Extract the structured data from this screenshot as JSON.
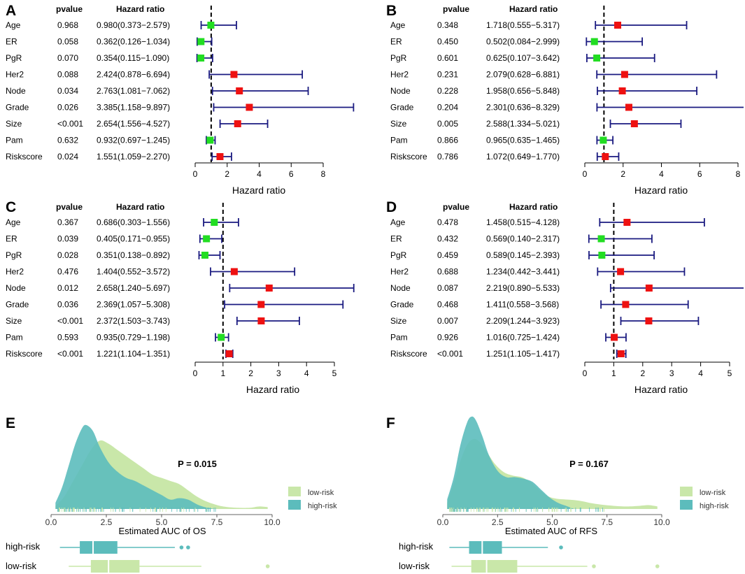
{
  "chart_data": [
    {
      "panel": "A",
      "type": "forest",
      "headers": {
        "pvalue": "pvalue",
        "hr": "Hazard ratio"
      },
      "xlabel": "Hazard ratio",
      "xlim": [
        0,
        8
      ],
      "xticks": [
        "0",
        "2",
        "4",
        "6",
        "8"
      ],
      "ref": 1,
      "rows": [
        {
          "name": "Age",
          "p": "0.968",
          "text": "0.980(0.373−2.579)",
          "hr": 0.98,
          "lo": 0.373,
          "hi": 2.579,
          "color": "#22dd22"
        },
        {
          "name": "ER",
          "p": "0.058",
          "text": "0.362(0.126−1.034)",
          "hr": 0.362,
          "lo": 0.126,
          "hi": 1.034,
          "color": "#22dd22"
        },
        {
          "name": "PgR",
          "p": "0.070",
          "text": "0.354(0.115−1.090)",
          "hr": 0.354,
          "lo": 0.115,
          "hi": 1.09,
          "color": "#22dd22"
        },
        {
          "name": "Her2",
          "p": "0.088",
          "text": "2.424(0.878−6.694)",
          "hr": 2.424,
          "lo": 0.878,
          "hi": 6.694,
          "color": "#ee1111"
        },
        {
          "name": "Node",
          "p": "0.034",
          "text": "2.763(1.081−7.062)",
          "hr": 2.763,
          "lo": 1.081,
          "hi": 7.062,
          "color": "#ee1111"
        },
        {
          "name": "Grade",
          "p": "0.026",
          "text": "3.385(1.158−9.897)",
          "hr": 3.385,
          "lo": 1.158,
          "hi": 9.897,
          "color": "#ee1111"
        },
        {
          "name": "Size",
          "p": "<0.001",
          "text": "2.654(1.556−4.527)",
          "hr": 2.654,
          "lo": 1.556,
          "hi": 4.527,
          "color": "#ee1111"
        },
        {
          "name": "Pam",
          "p": "0.632",
          "text": "0.932(0.697−1.245)",
          "hr": 0.932,
          "lo": 0.697,
          "hi": 1.245,
          "color": "#22dd22"
        },
        {
          "name": "Riskscore",
          "p": "0.024",
          "text": "1.551(1.059−2.270)",
          "hr": 1.551,
          "lo": 1.059,
          "hi": 2.27,
          "color": "#ee1111"
        }
      ]
    },
    {
      "panel": "B",
      "type": "forest",
      "headers": {
        "pvalue": "pvalue",
        "hr": "Hazard ratio"
      },
      "xlabel": "Hazard ratio",
      "xlim": [
        0,
        8
      ],
      "xticks": [
        "0",
        "2",
        "4",
        "6",
        "8"
      ],
      "ref": 1,
      "rows": [
        {
          "name": "Age",
          "p": "0.348",
          "text": "1.718(0.555−5.317)",
          "hr": 1.718,
          "lo": 0.555,
          "hi": 5.317,
          "color": "#ee1111"
        },
        {
          "name": "ER",
          "p": "0.450",
          "text": "0.502(0.084−2.999)",
          "hr": 0.502,
          "lo": 0.084,
          "hi": 2.999,
          "color": "#22dd22"
        },
        {
          "name": "PgR",
          "p": "0.601",
          "text": "0.625(0.107−3.642)",
          "hr": 0.625,
          "lo": 0.107,
          "hi": 3.642,
          "color": "#22dd22"
        },
        {
          "name": "Her2",
          "p": "0.231",
          "text": "2.079(0.628−6.881)",
          "hr": 2.079,
          "lo": 0.628,
          "hi": 6.881,
          "color": "#ee1111"
        },
        {
          "name": "Node",
          "p": "0.228",
          "text": "1.958(0.656−5.848)",
          "hr": 1.958,
          "lo": 0.656,
          "hi": 5.848,
          "color": "#ee1111"
        },
        {
          "name": "Grade",
          "p": "0.204",
          "text": "2.301(0.636−8.329)",
          "hr": 2.301,
          "lo": 0.636,
          "hi": 8.329,
          "color": "#ee1111"
        },
        {
          "name": "Size",
          "p": "0.005",
          "text": "2.588(1.334−5.021)",
          "hr": 2.588,
          "lo": 1.334,
          "hi": 5.021,
          "color": "#ee1111"
        },
        {
          "name": "Pam",
          "p": "0.866",
          "text": "0.965(0.635−1.465)",
          "hr": 0.965,
          "lo": 0.635,
          "hi": 1.465,
          "color": "#22dd22"
        },
        {
          "name": "Riskscore",
          "p": "0.786",
          "text": "1.072(0.649−1.770)",
          "hr": 1.072,
          "lo": 0.649,
          "hi": 1.77,
          "color": "#ee1111"
        }
      ]
    },
    {
      "panel": "C",
      "type": "forest",
      "headers": {
        "pvalue": "pvalue",
        "hr": "Hazard ratio"
      },
      "xlabel": "Hazard ratio",
      "xlim": [
        0,
        5
      ],
      "xticks": [
        "0",
        "1",
        "2",
        "3",
        "4",
        "5"
      ],
      "ref": 1,
      "rows": [
        {
          "name": "Age",
          "p": "0.367",
          "text": "0.686(0.303−1.556)",
          "hr": 0.686,
          "lo": 0.303,
          "hi": 1.556,
          "color": "#22dd22"
        },
        {
          "name": "ER",
          "p": "0.039",
          "text": "0.405(0.171−0.955)",
          "hr": 0.405,
          "lo": 0.171,
          "hi": 0.955,
          "color": "#22dd22"
        },
        {
          "name": "PgR",
          "p": "0.028",
          "text": "0.351(0.138−0.892)",
          "hr": 0.351,
          "lo": 0.138,
          "hi": 0.892,
          "color": "#22dd22"
        },
        {
          "name": "Her2",
          "p": "0.476",
          "text": "1.404(0.552−3.572)",
          "hr": 1.404,
          "lo": 0.552,
          "hi": 3.572,
          "color": "#ee1111"
        },
        {
          "name": "Node",
          "p": "0.012",
          "text": "2.658(1.240−5.697)",
          "hr": 2.658,
          "lo": 1.24,
          "hi": 5.697,
          "color": "#ee1111"
        },
        {
          "name": "Grade",
          "p": "0.036",
          "text": "2.369(1.057−5.308)",
          "hr": 2.369,
          "lo": 1.057,
          "hi": 5.308,
          "color": "#ee1111"
        },
        {
          "name": "Size",
          "p": "<0.001",
          "text": "2.372(1.503−3.743)",
          "hr": 2.372,
          "lo": 1.503,
          "hi": 3.743,
          "color": "#ee1111"
        },
        {
          "name": "Pam",
          "p": "0.593",
          "text": "0.935(0.729−1.198)",
          "hr": 0.935,
          "lo": 0.729,
          "hi": 1.198,
          "color": "#22dd22"
        },
        {
          "name": "Riskscore",
          "p": "<0.001",
          "text": "1.221(1.104−1.351)",
          "hr": 1.221,
          "lo": 1.104,
          "hi": 1.351,
          "color": "#ee1111"
        }
      ]
    },
    {
      "panel": "D",
      "type": "forest",
      "headers": {
        "pvalue": "pvalue",
        "hr": "Hazard ratio"
      },
      "xlabel": "Hazard ratio",
      "xlim": [
        0,
        5
      ],
      "xticks": [
        "0",
        "1",
        "2",
        "3",
        "4",
        "5"
      ],
      "ref": 1,
      "rows": [
        {
          "name": "Age",
          "p": "0.478",
          "text": "1.458(0.515−4.128)",
          "hr": 1.458,
          "lo": 0.515,
          "hi": 4.128,
          "color": "#ee1111"
        },
        {
          "name": "ER",
          "p": "0.432",
          "text": "0.569(0.140−2.317)",
          "hr": 0.569,
          "lo": 0.14,
          "hi": 2.317,
          "color": "#22dd22"
        },
        {
          "name": "PgR",
          "p": "0.459",
          "text": "0.589(0.145−2.393)",
          "hr": 0.589,
          "lo": 0.145,
          "hi": 2.393,
          "color": "#22dd22"
        },
        {
          "name": "Her2",
          "p": "0.688",
          "text": "1.234(0.442−3.441)",
          "hr": 1.234,
          "lo": 0.442,
          "hi": 3.441,
          "color": "#ee1111"
        },
        {
          "name": "Node",
          "p": "0.087",
          "text": "2.219(0.890−5.533)",
          "hr": 2.219,
          "lo": 0.89,
          "hi": 5.533,
          "color": "#ee1111"
        },
        {
          "name": "Grade",
          "p": "0.468",
          "text": "1.411(0.558−3.568)",
          "hr": 1.411,
          "lo": 0.558,
          "hi": 3.568,
          "color": "#ee1111"
        },
        {
          "name": "Size",
          "p": "0.007",
          "text": "2.209(1.244−3.923)",
          "hr": 2.209,
          "lo": 1.244,
          "hi": 3.923,
          "color": "#ee1111"
        },
        {
          "name": "Pam",
          "p": "0.926",
          "text": "1.016(0.725−1.424)",
          "hr": 1.016,
          "lo": 0.725,
          "hi": 1.424,
          "color": "#ee1111"
        },
        {
          "name": "Riskscore",
          "p": "<0.001",
          "text": "1.251(1.105−1.417)",
          "hr": 1.251,
          "lo": 1.105,
          "hi": 1.417,
          "color": "#ee1111"
        }
      ]
    },
    {
      "panel": "E",
      "type": "density_box",
      "xlabel": "Estimated AUC of OS",
      "xlim": [
        0,
        10
      ],
      "xticks": [
        "0.0",
        "2.5",
        "5.0",
        "7.5",
        "10.0"
      ],
      "pvalue": "P = 0.015",
      "legend": [
        "low-risk",
        "high-risk"
      ],
      "groups": [
        {
          "name": "low-risk",
          "color": "#c9e7a9",
          "density": [
            [
              0.2,
              0.01
            ],
            [
              0.6,
              0.04
            ],
            [
              1.0,
              0.09
            ],
            [
              1.4,
              0.14
            ],
            [
              1.8,
              0.19
            ],
            [
              2.2,
              0.22
            ],
            [
              2.6,
              0.21
            ],
            [
              3.0,
              0.19
            ],
            [
              3.4,
              0.17
            ],
            [
              3.8,
              0.15
            ],
            [
              4.2,
              0.13
            ],
            [
              4.6,
              0.11
            ],
            [
              5.0,
              0.1
            ],
            [
              5.4,
              0.09
            ],
            [
              5.8,
              0.08
            ],
            [
              6.2,
              0.06
            ],
            [
              6.6,
              0.04
            ],
            [
              7.0,
              0.025
            ],
            [
              7.4,
              0.015
            ],
            [
              7.8,
              0.008
            ],
            [
              8.4,
              0.004
            ],
            [
              9.0,
              0.004
            ],
            [
              9.4,
              0.008
            ],
            [
              9.8,
              0.006
            ]
          ],
          "box": {
            "min": 0.8,
            "q1": 1.8,
            "median": 2.6,
            "q3": 4.0,
            "max": 6.8,
            "outliers": [
              9.8
            ]
          }
        },
        {
          "name": "high-risk",
          "color": "#5cbcbc",
          "density": [
            [
              0.2,
              0.02
            ],
            [
              0.5,
              0.07
            ],
            [
              0.8,
              0.14
            ],
            [
              1.1,
              0.21
            ],
            [
              1.4,
              0.26
            ],
            [
              1.6,
              0.27
            ],
            [
              1.9,
              0.25
            ],
            [
              2.2,
              0.2
            ],
            [
              2.6,
              0.15
            ],
            [
              3.0,
              0.12
            ],
            [
              3.4,
              0.1
            ],
            [
              3.8,
              0.09
            ],
            [
              4.2,
              0.075
            ],
            [
              4.6,
              0.06
            ],
            [
              5.0,
              0.045
            ],
            [
              5.4,
              0.03
            ],
            [
              5.8,
              0.035
            ],
            [
              6.2,
              0.03
            ],
            [
              6.6,
              0.015
            ],
            [
              7.0,
              0.005
            ],
            [
              7.4,
              0.0
            ]
          ],
          "box": {
            "min": 0.4,
            "q1": 1.3,
            "median": 1.9,
            "q3": 3.0,
            "max": 5.6,
            "outliers": [
              5.9,
              6.2
            ]
          }
        }
      ]
    },
    {
      "panel": "F",
      "type": "density_box",
      "xlabel": "Estimated AUC of RFS",
      "xlim": [
        0,
        10
      ],
      "xticks": [
        "0.0",
        "2.5",
        "5.0",
        "7.5",
        "10.0"
      ],
      "pvalue": "P = 0.167",
      "legend": [
        "low-risk",
        "high-risk"
      ],
      "groups": [
        {
          "name": "low-risk",
          "color": "#c9e7a9",
          "density": [
            [
              0.2,
              0.02
            ],
            [
              0.5,
              0.08
            ],
            [
              0.8,
              0.15
            ],
            [
              1.1,
              0.2
            ],
            [
              1.4,
              0.22
            ],
            [
              1.7,
              0.21
            ],
            [
              2.0,
              0.18
            ],
            [
              2.4,
              0.14
            ],
            [
              2.8,
              0.115
            ],
            [
              3.2,
              0.105
            ],
            [
              3.6,
              0.1
            ],
            [
              4.0,
              0.085
            ],
            [
              4.4,
              0.06
            ],
            [
              4.8,
              0.04
            ],
            [
              5.2,
              0.032
            ],
            [
              5.6,
              0.03
            ],
            [
              6.0,
              0.028
            ],
            [
              6.4,
              0.024
            ],
            [
              6.8,
              0.018
            ],
            [
              7.2,
              0.014
            ],
            [
              7.8,
              0.01
            ],
            [
              8.4,
              0.008
            ],
            [
              9.0,
              0.01
            ],
            [
              9.4,
              0.012
            ],
            [
              9.8,
              0.008
            ]
          ],
          "box": {
            "min": 0.4,
            "q1": 1.3,
            "median": 2.0,
            "q3": 3.4,
            "max": 6.6,
            "outliers": [
              6.9,
              9.8
            ]
          }
        },
        {
          "name": "high-risk",
          "color": "#5cbcbc",
          "density": [
            [
              0.2,
              0.03
            ],
            [
              0.5,
              0.1
            ],
            [
              0.8,
              0.2
            ],
            [
              1.1,
              0.27
            ],
            [
              1.3,
              0.29
            ],
            [
              1.5,
              0.28
            ],
            [
              1.8,
              0.23
            ],
            [
              2.1,
              0.17
            ],
            [
              2.5,
              0.12
            ],
            [
              2.9,
              0.1
            ],
            [
              3.3,
              0.1
            ],
            [
              3.7,
              0.095
            ],
            [
              4.1,
              0.085
            ],
            [
              4.5,
              0.06
            ],
            [
              4.9,
              0.035
            ],
            [
              5.3,
              0.018
            ],
            [
              5.7,
              0.008
            ],
            [
              6.0,
              0.0
            ]
          ],
          "box": {
            "min": 0.3,
            "q1": 1.2,
            "median": 1.8,
            "q3": 2.7,
            "max": 4.8,
            "outliers": [
              5.4
            ]
          }
        }
      ]
    }
  ],
  "labels": {
    "panelE": {
      "box_high": "high-risk",
      "box_low": "low-risk"
    },
    "panelF": {
      "box_high": "high-risk",
      "box_low": "low-risk"
    }
  }
}
